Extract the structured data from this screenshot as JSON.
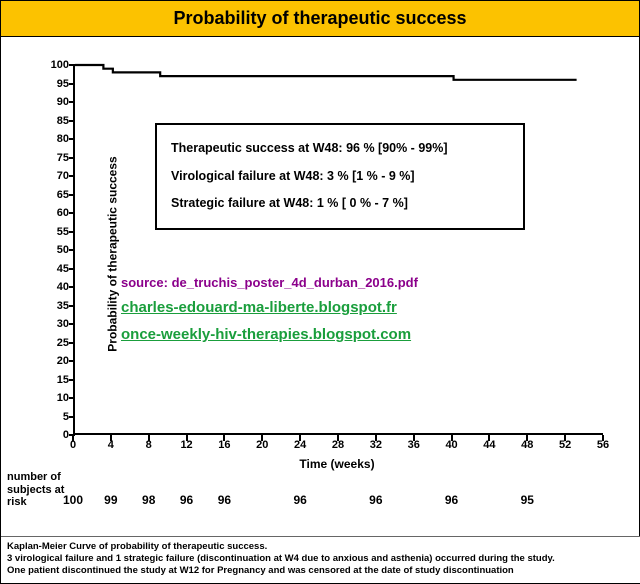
{
  "title": "Probability of therapeutic success",
  "chart": {
    "type": "kaplan-meier",
    "y_label": "Probability of therapeutic success",
    "x_label": "Time (weeks)",
    "x_ticks": [
      0,
      4,
      8,
      12,
      16,
      20,
      24,
      28,
      32,
      36,
      40,
      44,
      48,
      52,
      56
    ],
    "y_ticks": [
      0,
      5,
      10,
      15,
      20,
      25,
      30,
      35,
      40,
      45,
      50,
      55,
      60,
      65,
      70,
      75,
      80,
      85,
      90,
      95,
      100
    ],
    "xlim": [
      0,
      56
    ],
    "ylim": [
      0,
      100
    ],
    "line_color": "#000000",
    "line_width": 2.2,
    "points": [
      {
        "x": 0,
        "y": 100
      },
      {
        "x": 3,
        "y": 100
      },
      {
        "x": 3,
        "y": 99
      },
      {
        "x": 4,
        "y": 99
      },
      {
        "x": 4,
        "y": 98
      },
      {
        "x": 9,
        "y": 98
      },
      {
        "x": 9,
        "y": 97
      },
      {
        "x": 10,
        "y": 97
      },
      {
        "x": 40,
        "y": 97
      },
      {
        "x": 40,
        "y": 96
      },
      {
        "x": 41,
        "y": 96
      },
      {
        "x": 41,
        "y": 96
      },
      {
        "x": 53,
        "y": 96
      }
    ],
    "background_color": "#ffffff",
    "tick_fontsize": 11,
    "label_fontsize": 12
  },
  "results_box": {
    "rows": [
      "Therapeutic success at W48: 96 % [90% - 99%]",
      "Virological failure at W48:    3 % [1 % - 9 %]",
      "Strategic failure at W48:        1 % [ 0 % - 7 %]"
    ],
    "border_color": "#000000",
    "font_size": 12.5
  },
  "source": {
    "text": "source: de_truchis_poster_4d_durban_2016.pdf",
    "color": "#8b008b",
    "links": [
      {
        "text": "charles-edouard-ma-liberte.blogspot.fr",
        "color": "#1a9e3c"
      },
      {
        "text": "once-weekly-hiv-therapies.blogspot.com",
        "color": "#1a9e3c"
      }
    ]
  },
  "at_risk": {
    "label": "number of subjects at risk",
    "weeks": [
      0,
      4,
      8,
      12,
      16,
      24,
      32,
      40,
      48
    ],
    "counts": [
      100,
      99,
      98,
      96,
      96,
      96,
      96,
      96,
      95
    ]
  },
  "footer_lines": [
    "Kaplan-Meier Curve of probability of  therapeutic success.",
    "3 virological failure and 1 strategic failure (discontinuation at W4 due to anxious and asthenia) occurred during the study.",
    "One patient discontinued the study  at W12 for Pregnancy and was censored at the date of study discontinuation"
  ],
  "colors": {
    "title_bg": "#fcc200",
    "title_fg": "#000000"
  }
}
